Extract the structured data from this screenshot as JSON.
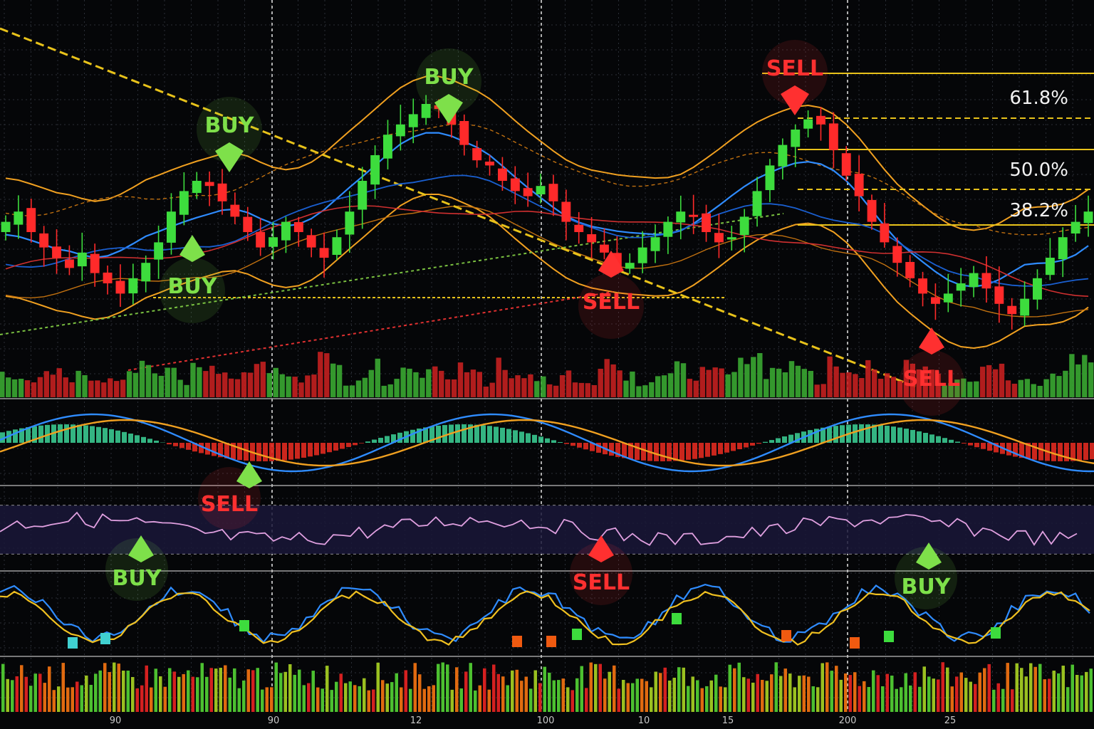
{
  "chart_data": {
    "type": "candlestick",
    "title": "",
    "xlabel": "",
    "ylabel": "",
    "grid": true,
    "colors": {
      "background": "#050608",
      "grid": "#2a2e36",
      "up": "#3ddc3d",
      "down": "#ff2a2a",
      "fib_line": "#e8c21a",
      "trendline": "#e8c21a",
      "ma_fast": "#2f8cff",
      "ma_slow": "#f0a020",
      "band": "#f0a020",
      "stoch_k": "#2f8cff",
      "stoch_d": "#f0c020",
      "rsi": "#e0a0e0",
      "buy_label": "#7ee04a",
      "sell_label": "#ff3030",
      "label_text": "#f2f2f2"
    },
    "x_ticks": [
      "90",
      "90",
      "12",
      "100",
      "10",
      "15",
      "200",
      "25"
    ],
    "main": {
      "close": [
        102,
        104,
        100,
        97,
        95,
        93,
        96,
        92,
        90,
        88,
        91,
        94,
        98,
        104,
        108,
        110,
        109,
        106,
        103,
        100,
        97,
        99,
        102,
        100,
        97,
        95,
        99,
        104,
        110,
        115,
        119,
        121,
        123,
        125,
        124,
        121,
        117,
        114,
        113,
        110,
        108,
        107,
        109,
        106,
        102,
        100,
        98,
        96,
        93,
        94,
        97,
        99,
        102,
        104,
        103,
        100,
        98,
        99,
        103,
        108,
        113,
        117,
        120,
        122,
        121,
        116,
        111,
        107,
        102,
        98,
        94,
        91,
        88,
        86,
        88,
        90,
        92,
        89,
        86,
        84,
        87,
        91,
        95,
        99,
        102,
        104
      ],
      "fib_levels": [
        {
          "label": "61.8%",
          "value": 123
        },
        {
          "label": "50.0%",
          "value": 115
        },
        {
          "label": "38.2%",
          "value": 107
        }
      ],
      "signals": [
        {
          "label": "BUY",
          "kind": "buy",
          "index": 14
        },
        {
          "label": "BUY",
          "kind": "buy",
          "index": 8
        },
        {
          "label": "SELL",
          "kind": "sell",
          "index": 33
        },
        {
          "label": "BUY",
          "kind": "buy",
          "index": 48
        },
        {
          "label": "SELL",
          "kind": "sell",
          "index": 63
        },
        {
          "label": "SELL",
          "kind": "sell",
          "index": 73
        }
      ]
    },
    "macd": {
      "signals": [
        {
          "label": "SELL",
          "kind": "sell",
          "index": 17
        },
        {
          "label": "BUY",
          "kind": "buy",
          "index": 10
        }
      ]
    },
    "rsi": {
      "signals": [
        {
          "label": "SELL",
          "kind": "sell",
          "index": 48
        },
        {
          "label": "BUY",
          "kind": "buy",
          "index": 74
        }
      ]
    }
  }
}
